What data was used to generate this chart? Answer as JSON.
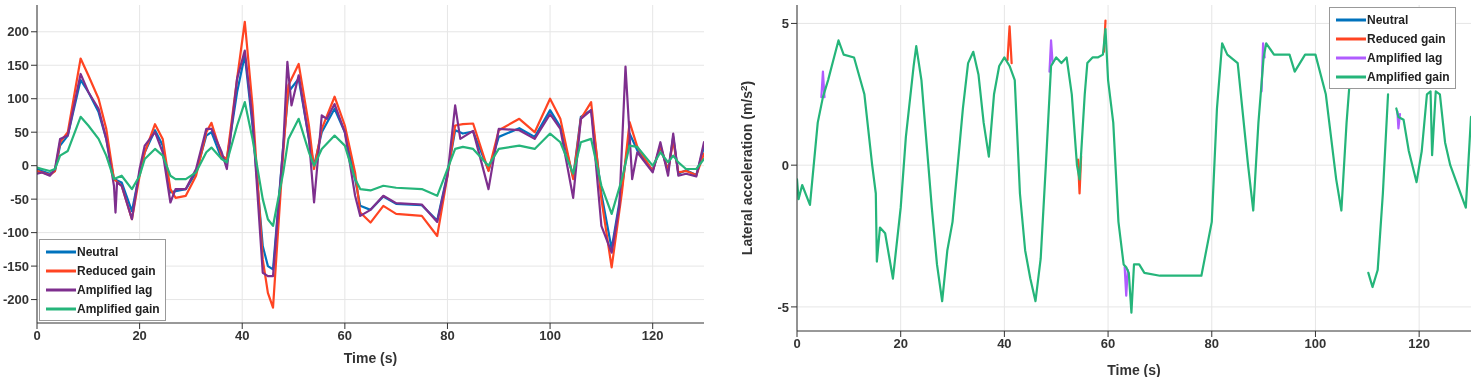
{
  "chart_data": [
    {
      "type": "line",
      "xlabel": "Time (s)",
      "xlim": [
        0,
        130
      ],
      "xticks": [
        0,
        20,
        40,
        60,
        80,
        100,
        120
      ],
      "ylim": [
        -235,
        240
      ],
      "yticks": [
        -200,
        -150,
        -100,
        -50,
        0,
        50,
        100,
        150,
        200
      ],
      "grid": true,
      "legend": "bottom left",
      "x": [
        0,
        1,
        2.5,
        3.5,
        4.5,
        6,
        8.5,
        10,
        12,
        13.5,
        15,
        16.5,
        18.5,
        20,
        21,
        23,
        24.5,
        26,
        27,
        29,
        31,
        33,
        34,
        36,
        37,
        39,
        40.5,
        42,
        44,
        45,
        46,
        48,
        49,
        51,
        53,
        54,
        55.5,
        58,
        60,
        62,
        63,
        65,
        67.5,
        70,
        75,
        78,
        80,
        81.5,
        83,
        85,
        88,
        90,
        94,
        97,
        100,
        102,
        104.5,
        106,
        108,
        110,
        112,
        114,
        115.5,
        117,
        120,
        121.5,
        123,
        124,
        125,
        126.5,
        128.5,
        130
      ],
      "series": [
        {
          "name": "Neutral",
          "color": "#0072bd",
          "values": [
            -5,
            -8,
            -12,
            -8,
            30,
            45,
            128,
            110,
            80,
            40,
            -20,
            -25,
            -68,
            -10,
            20,
            53,
            30,
            -40,
            -38,
            -35,
            -10,
            45,
            50,
            10,
            10,
            110,
            165,
            60,
            -120,
            -150,
            -155,
            30,
            110,
            130,
            40,
            0,
            50,
            85,
            50,
            -20,
            -60,
            -66,
            -46,
            -57,
            -59,
            -82,
            -12,
            53,
            48,
            51,
            -7,
            43,
            56,
            43,
            83,
            58,
            -17,
            73,
            83,
            -42,
            -124,
            -32,
            48,
            23,
            -7,
            28,
            -7,
            43,
            -12,
            -7,
            -14,
            28
          ]
        },
        {
          "name": "Reduced gain",
          "color": "#ff4422",
          "values": [
            -8,
            -10,
            -14,
            -8,
            35,
            50,
            160,
            135,
            100,
            55,
            -20,
            -30,
            -80,
            -15,
            20,
            62,
            40,
            -35,
            -48,
            -45,
            -15,
            50,
            64,
            15,
            10,
            130,
            215,
            90,
            -140,
            -190,
            -212,
            20,
            120,
            152,
            60,
            -5,
            55,
            103,
            60,
            -10,
            -70,
            -85,
            -60,
            -72,
            -75,
            -105,
            -15,
            60,
            62,
            63,
            -8,
            53,
            70,
            50,
            100,
            70,
            -20,
            70,
            95,
            -50,
            -152,
            -40,
            65,
            28,
            -8,
            30,
            -8,
            38,
            -10,
            -8,
            -14,
            18
          ]
        },
        {
          "name": "Amplified lag",
          "color": "#7e2f8e",
          "x": [
            0,
            1,
            2.5,
            3.5,
            4.5,
            6,
            8.5,
            10,
            12,
            13.5,
            15,
            15.3,
            15.6,
            16.5,
            18.5,
            20,
            21,
            23,
            24.5,
            26,
            27,
            29,
            31,
            33,
            34,
            36,
            37,
            39,
            40.5,
            42,
            44,
            45,
            46,
            48,
            48.8,
            49.6,
            51,
            53,
            54,
            55.5,
            56.5,
            58,
            60,
            62,
            63,
            65,
            67.5,
            70,
            75,
            78,
            80,
            81.5,
            82.5,
            85,
            88,
            90,
            94,
            97,
            100,
            102,
            104.5,
            106,
            108,
            110,
            112,
            113.5,
            114.7,
            116,
            117,
            120,
            121.5,
            123,
            124,
            125,
            126.5,
            128.5,
            130
          ],
          "values": [
            -12,
            -10,
            -15,
            -5,
            40,
            45,
            137,
            110,
            85,
            40,
            -30,
            -70,
            -25,
            -30,
            -80,
            -5,
            30,
            50,
            20,
            -55,
            -35,
            -35,
            -5,
            55,
            55,
            20,
            -5,
            130,
            172,
            70,
            -160,
            -165,
            -165,
            30,
            155,
            90,
            135,
            40,
            -55,
            75,
            70,
            92,
            50,
            -45,
            -75,
            -66,
            -45,
            -56,
            -58,
            -84,
            -15,
            90,
            40,
            52,
            -35,
            55,
            53,
            40,
            77,
            55,
            -48,
            70,
            83,
            -90,
            -130,
            -60,
            148,
            -20,
            20,
            -10,
            35,
            -15,
            48,
            -15,
            -12,
            -16,
            35
          ]
        },
        {
          "name": "Amplified gain",
          "color": "#25b57a",
          "values": [
            -3,
            -5,
            -8,
            -5,
            15,
            22,
            73,
            60,
            40,
            15,
            -20,
            -15,
            -35,
            -15,
            10,
            25,
            15,
            -15,
            -20,
            -20,
            -10,
            20,
            27,
            10,
            5,
            60,
            95,
            40,
            -50,
            -80,
            -90,
            -10,
            40,
            70,
            20,
            0,
            25,
            45,
            30,
            -20,
            -35,
            -37,
            -30,
            -33,
            -35,
            -45,
            -5,
            25,
            28,
            25,
            0,
            25,
            30,
            25,
            48,
            35,
            -12,
            35,
            40,
            -30,
            -72,
            -20,
            30,
            28,
            0,
            20,
            5,
            15,
            5,
            -5,
            -5,
            10
          ]
        }
      ]
    },
    {
      "type": "line",
      "xlabel": "Time (s)",
      "ylabel": "Lateral acceleration (m/s$^{2}$)",
      "xlim": [
        0,
        130
      ],
      "xticks": [
        0,
        20,
        40,
        60,
        80,
        100,
        120
      ],
      "ylim": [
        -5.85,
        5.65
      ],
      "yticks": [
        -5,
        0,
        5
      ],
      "grid": true,
      "legend": "top right",
      "series": [
        {
          "name": "Neutral",
          "color": "#0072bd"
        },
        {
          "name": "Reduced gain",
          "color": "#ff4422",
          "x": [
            40.6,
            41,
            41.4,
            50,
            54.2,
            54.5,
            54.8,
            56,
            59.2,
            59.5
          ],
          "values": [
            3.7,
            4.9,
            3.6,
            null,
            0.2,
            -1.0,
            0.3,
            null,
            4.0,
            5.1
          ]
        },
        {
          "name": "Amplified lag",
          "color": "#b05cff",
          "x": [
            4.7,
            5,
            5.3,
            20,
            48.7,
            49,
            49.3,
            55,
            63.2,
            63.5,
            63.8,
            80,
            89.6,
            89.9,
            90.2,
            100,
            115.8,
            116,
            116.3
          ],
          "values": [
            2.4,
            3.3,
            2.4,
            null,
            3.3,
            4.4,
            3.6,
            null,
            -3.6,
            -4.6,
            -3.7,
            null,
            2.6,
            4.3,
            3.8,
            null,
            1.9,
            1.3,
            1.8
          ]
        },
        {
          "name": "Amplified gain",
          "color": "#25b57a",
          "x": [
            0,
            0.3,
            1,
            2.5,
            4,
            5,
            6,
            7,
            8,
            9,
            11,
            13,
            14.5,
            15.2,
            15.4,
            16,
            17,
            18.5,
            20,
            21,
            22.5,
            23,
            24,
            26,
            27,
            28,
            29,
            30,
            32,
            33,
            34,
            35,
            36,
            37,
            38,
            39,
            40,
            41,
            42,
            43,
            44,
            45,
            46,
            47,
            48,
            49,
            50,
            51,
            52,
            53,
            54,
            54.5,
            55.5,
            56,
            57,
            58,
            59,
            59.5,
            60,
            61,
            62,
            63,
            63.5,
            64,
            64.5,
            65,
            66,
            67,
            70,
            75,
            78,
            80,
            81,
            82,
            83,
            85,
            87,
            88,
            89,
            90,
            90.5,
            92,
            95,
            96,
            98,
            100,
            102,
            104,
            105,
            106,
            106.5,
            107.5,
            109.5,
            110.2,
            111,
            112,
            113,
            114,
            114.5,
            115.6,
            116,
            117,
            118,
            119.5,
            120.5,
            121.5,
            122.2,
            122.5,
            123.2,
            124,
            125,
            126,
            128,
            129,
            130
          ],
          "values": [
            -0.5,
            -1.2,
            -0.7,
            -1.4,
            1.5,
            2.4,
            3.0,
            3.7,
            4.4,
            3.9,
            3.8,
            2.5,
            0,
            -1.0,
            -3.4,
            -2.2,
            -2.4,
            -4.0,
            -1.5,
            1.0,
            3.5,
            4.2,
            3.0,
            -1.5,
            -3.5,
            -4.8,
            -3.0,
            -2.0,
            2.0,
            3.6,
            4.0,
            3.2,
            1.5,
            0.3,
            2.5,
            3.5,
            3.8,
            3.5,
            3.0,
            -1.0,
            -3.0,
            -4.0,
            -4.8,
            -3.3,
            0,
            3.5,
            3.8,
            3.6,
            3.8,
            2.5,
            0,
            -0.5,
            2.5,
            3.6,
            3.8,
            3.8,
            3.9,
            4.8,
            3.0,
            1.5,
            -2.0,
            -3.5,
            -3.6,
            -3.8,
            -5.2,
            -3.5,
            -3.5,
            -3.8,
            -3.9,
            -3.9,
            -3.9,
            -2.0,
            2.0,
            4.3,
            3.9,
            3.6,
            0,
            -1.6,
            1.5,
            3.8,
            4.3,
            3.9,
            3.9,
            3.3,
            3.9,
            3.9,
            2.5,
            -0.5,
            -1.6,
            1.5,
            2.7,
            null,
            null,
            -3.8,
            -4.3,
            -3.7,
            -1.0,
            2.5,
            null,
            2.0,
            1.7,
            1.6,
            0.5,
            -0.6,
            0.5,
            2.5,
            2.6,
            0.35,
            2.6,
            2.5,
            0.8,
            0,
            -1.0,
            -1.5,
            1.7
          ]
        }
      ]
    }
  ]
}
